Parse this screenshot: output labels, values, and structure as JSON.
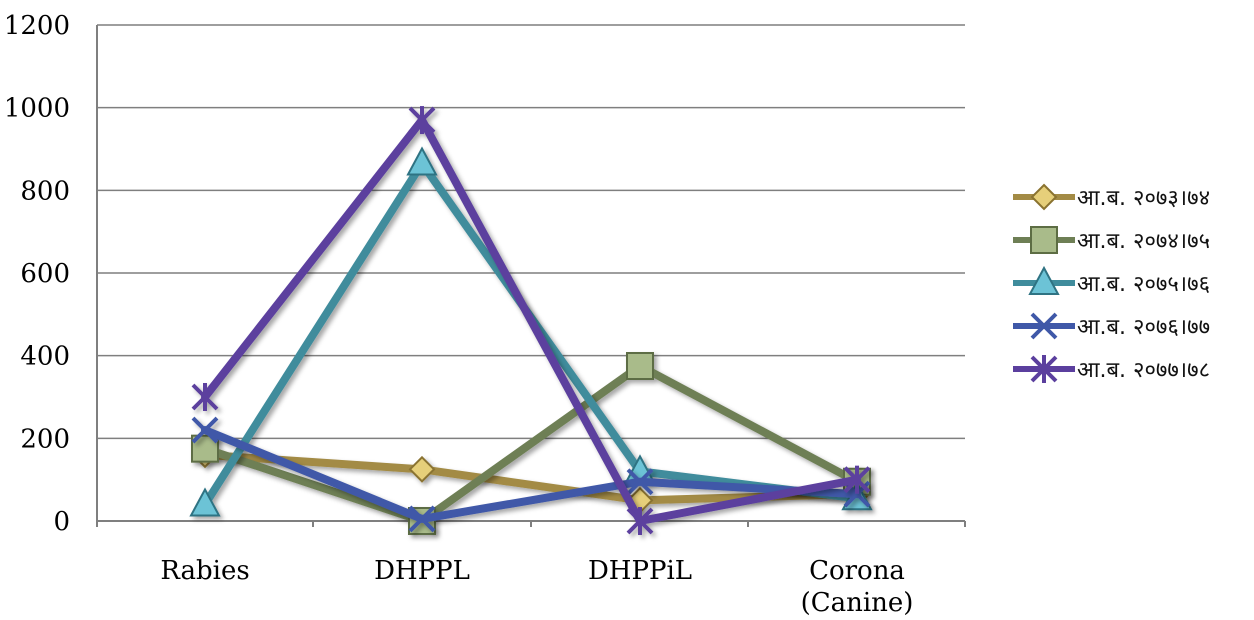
{
  "chart_data": {
    "type": "line",
    "categories": [
      "Rabies",
      "DHPPL",
      "DHPPiL",
      "Corona\n(Canine)"
    ],
    "ylim": [
      0,
      1200
    ],
    "yticks": [
      0,
      200,
      400,
      600,
      800,
      1000,
      1200
    ],
    "grid": true,
    "legend_position": "right",
    "series": [
      {
        "name": "आ.ब. २०७३।७४",
        "values": [
          160,
          125,
          50,
          65
        ],
        "color": "#a38b45",
        "marker": "diamond"
      },
      {
        "name": "आ.ब. २०७४।७५",
        "values": [
          175,
          0,
          375,
          95
        ],
        "color": "#6e7f55",
        "marker": "square"
      },
      {
        "name": "आ.ब. २०७५।७६",
        "values": [
          40,
          865,
          120,
          55
        ],
        "color": "#3f8c9c",
        "marker": "triangle"
      },
      {
        "name": "आ.ब. २०७६।७७",
        "values": [
          220,
          5,
          95,
          65
        ],
        "color": "#3f58a8",
        "marker": "x"
      },
      {
        "name": "आ.ब. २०७७।७८",
        "values": [
          300,
          970,
          0,
          100
        ],
        "color": "#5b3f9e",
        "marker": "star"
      }
    ]
  }
}
